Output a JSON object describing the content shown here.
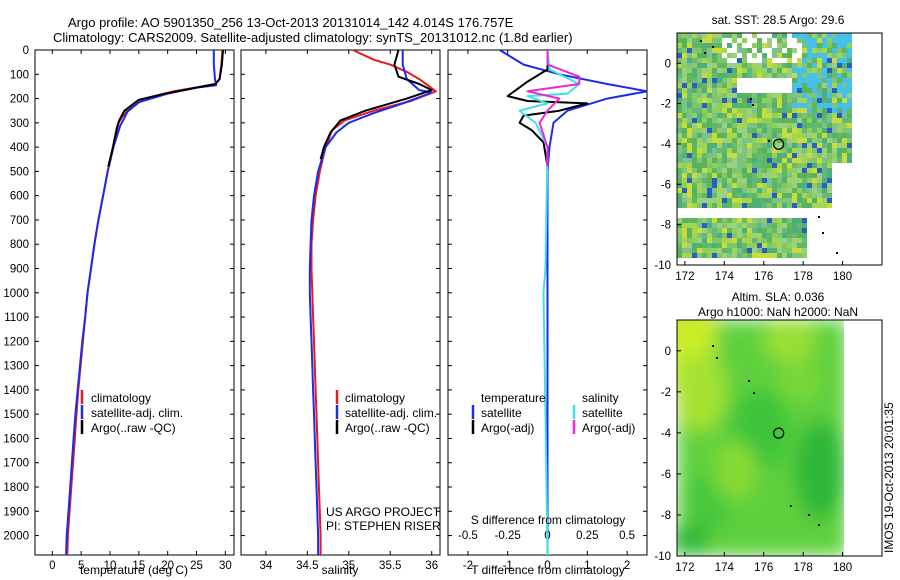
{
  "header": {
    "line1": "Argo profile: AO 5901350_256 13-Oct-2013 20131014_142 4.014S 176.757E",
    "line2": "Climatology: CARS2009. Satellite-adjusted climatology: synTS_20131012.nc (1.8d earlier)"
  },
  "colors": {
    "climatology": "#e8191c",
    "satellite": "#1c2ce8",
    "argo": "#000000",
    "cyan": "#3ee0ea",
    "magenta": "#ea28d8"
  },
  "chart_data": [
    {
      "type": "line",
      "xlabel": "temperature (deg C)",
      "ylabel": "",
      "xlim": [
        -3,
        31.5
      ],
      "ylim": [
        2080,
        0
      ],
      "xticks": [
        0,
        5,
        10,
        15,
        20,
        25,
        30
      ],
      "yticks": [
        0,
        100,
        200,
        300,
        400,
        500,
        600,
        700,
        800,
        900,
        1000,
        1100,
        1200,
        1300,
        1400,
        1500,
        1600,
        1700,
        1800,
        1900,
        2000
      ],
      "legend": [
        "climatology",
        "satellite-adj. clim.",
        "Argo(..raw -QC)"
      ],
      "legend_position": "lower-left",
      "series": [
        {
          "name": "climatology",
          "color": "#e8191c",
          "points": [
            [
              29.5,
              0
            ],
            [
              29.3,
              60
            ],
            [
              29.0,
              120
            ],
            [
              28.2,
              140
            ],
            [
              26,
              150
            ],
            [
              21,
              170
            ],
            [
              16,
              200
            ],
            [
              13,
              250
            ],
            [
              12,
              280
            ],
            [
              11.5,
              300
            ],
            [
              10.6,
              400
            ],
            [
              9.6,
              500
            ],
            [
              8.8,
              600
            ],
            [
              8.0,
              700
            ],
            [
              7.3,
              800
            ],
            [
              6.7,
              900
            ],
            [
              6.1,
              1000
            ],
            [
              5.7,
              1100
            ],
            [
              5.3,
              1200
            ],
            [
              4.9,
              1300
            ],
            [
              4.5,
              1400
            ],
            [
              4.2,
              1500
            ],
            [
              3.9,
              1600
            ],
            [
              3.6,
              1700
            ],
            [
              3.3,
              1800
            ],
            [
              3.0,
              1900
            ],
            [
              2.7,
              2000
            ],
            [
              2.6,
              2080
            ]
          ]
        },
        {
          "name": "satellite-adj. clim.",
          "color": "#1c2ce8",
          "points": [
            [
              28.0,
              0
            ],
            [
              28.0,
              60
            ],
            [
              28.2,
              120
            ],
            [
              28.4,
              145
            ],
            [
              25,
              155
            ],
            [
              20,
              180
            ],
            [
              15,
              215
            ],
            [
              13,
              255
            ],
            [
              12.5,
              280
            ],
            [
              11.8,
              310
            ],
            [
              10.6,
              400
            ],
            [
              9.6,
              500
            ],
            [
              8.8,
              600
            ],
            [
              8.0,
              700
            ],
            [
              7.3,
              800
            ],
            [
              6.7,
              900
            ],
            [
              6.1,
              1000
            ],
            [
              5.7,
              1100
            ],
            [
              5.2,
              1200
            ],
            [
              4.8,
              1300
            ],
            [
              4.4,
              1400
            ],
            [
              4.0,
              1500
            ],
            [
              3.7,
              1600
            ],
            [
              3.4,
              1700
            ],
            [
              3.1,
              1800
            ],
            [
              2.8,
              1900
            ],
            [
              2.5,
              2000
            ],
            [
              2.4,
              2080
            ]
          ]
        },
        {
          "name": "Argo(..raw -QC)",
          "color": "#000000",
          "points": [
            [
              29.6,
              0
            ],
            [
              29.4,
              60
            ],
            [
              29.0,
              120
            ],
            [
              28.3,
              140
            ],
            [
              25,
              155
            ],
            [
              19.5,
              180
            ],
            [
              15,
              205
            ],
            [
              12.5,
              250
            ],
            [
              11.6,
              290
            ],
            [
              11.2,
              320
            ],
            [
              10.5,
              400
            ],
            [
              9.7,
              480
            ]
          ]
        }
      ]
    },
    {
      "type": "line",
      "xlabel": "salinity",
      "ylabel": "",
      "xlim": [
        33.7,
        36.1
      ],
      "ylim": [
        2080,
        0
      ],
      "xticks": [
        34,
        34.5,
        35,
        35.5,
        36
      ],
      "legend": [
        "climatology",
        "satellite-adj. clim.",
        "Argo(..raw -QC)"
      ],
      "legend_position": "lower-right",
      "annotations": [
        "US ARGO PROJECT",
        "PI: STEPHEN RISER"
      ],
      "series": [
        {
          "name": "climatology",
          "color": "#e8191c",
          "points": [
            [
              35.05,
              0
            ],
            [
              35.3,
              40
            ],
            [
              35.5,
              60
            ],
            [
              35.7,
              90
            ],
            [
              35.85,
              120
            ],
            [
              36.05,
              170
            ],
            [
              35.75,
              210
            ],
            [
              35.3,
              250
            ],
            [
              34.95,
              290
            ],
            [
              34.8,
              330
            ],
            [
              34.72,
              400
            ],
            [
              34.65,
              500
            ],
            [
              34.6,
              600
            ],
            [
              34.57,
              700
            ],
            [
              34.55,
              800
            ],
            [
              34.55,
              900
            ],
            [
              34.56,
              1000
            ],
            [
              34.57,
              1100
            ],
            [
              34.58,
              1200
            ],
            [
              34.59,
              1300
            ],
            [
              34.6,
              1400
            ],
            [
              34.61,
              1500
            ],
            [
              34.62,
              1600
            ],
            [
              34.63,
              1700
            ],
            [
              34.64,
              1800
            ],
            [
              34.65,
              1900
            ],
            [
              34.66,
              2000
            ],
            [
              34.66,
              2080
            ]
          ]
        },
        {
          "name": "satellite-adj. clim.",
          "color": "#1c2ce8",
          "points": [
            [
              35.65,
              0
            ],
            [
              35.65,
              60
            ],
            [
              35.7,
              120
            ],
            [
              35.85,
              165
            ],
            [
              36.0,
              175
            ],
            [
              35.65,
              220
            ],
            [
              35.3,
              260
            ],
            [
              35.0,
              300
            ],
            [
              34.85,
              340
            ],
            [
              34.72,
              400
            ],
            [
              34.63,
              500
            ],
            [
              34.58,
              600
            ],
            [
              34.55,
              700
            ],
            [
              34.54,
              800
            ],
            [
              34.53,
              900
            ],
            [
              34.53,
              1000
            ],
            [
              34.54,
              1100
            ],
            [
              34.55,
              1200
            ],
            [
              34.56,
              1300
            ],
            [
              34.57,
              1400
            ],
            [
              34.58,
              1500
            ],
            [
              34.59,
              1600
            ],
            [
              34.6,
              1700
            ],
            [
              34.61,
              1800
            ],
            [
              34.62,
              1900
            ],
            [
              34.63,
              2000
            ],
            [
              34.63,
              2080
            ]
          ]
        },
        {
          "name": "Argo(..raw -QC)",
          "color": "#000000",
          "points": [
            [
              35.6,
              0
            ],
            [
              35.55,
              60
            ],
            [
              35.6,
              110
            ],
            [
              35.85,
              140
            ],
            [
              36.0,
              165
            ],
            [
              35.7,
              200
            ],
            [
              35.2,
              250
            ],
            [
              34.9,
              290
            ],
            [
              34.78,
              340
            ],
            [
              34.7,
              400
            ],
            [
              34.66,
              450
            ]
          ]
        }
      ]
    },
    {
      "type": "line",
      "xlabel": "T difference from climatology",
      "xlabel2": "S difference from climatology",
      "xlim": [
        -2.5,
        2.5
      ],
      "x2lim": [
        -0.625,
        0.625
      ],
      "ylim": [
        2080,
        0
      ],
      "xticks": [
        -2,
        -1,
        0,
        1,
        2
      ],
      "x2ticks": [
        -0.5,
        -0.25,
        0,
        0.25,
        0.5
      ],
      "legend_title_left": "temperature",
      "legend_title_right": "salinity",
      "legend": [
        "satellite",
        "Argo(-adj)",
        "satellite",
        "Argo(-adj)"
      ],
      "series": [
        {
          "name": "temperature satellite",
          "color": "#1c2ce8",
          "points": [
            [
              -1.2,
              0
            ],
            [
              -0.6,
              60
            ],
            [
              0.3,
              100
            ],
            [
              1.5,
              140
            ],
            [
              2.5,
              170
            ],
            [
              1.5,
              200
            ],
            [
              0.5,
              250
            ],
            [
              0.15,
              300
            ],
            [
              0.05,
              400
            ],
            [
              0.0,
              500
            ],
            [
              0.0,
              1000
            ],
            [
              0.0,
              2080
            ]
          ]
        },
        {
          "name": "temperature Argo(-adj)",
          "color": "#000000",
          "points": [
            [
              0.0,
              0
            ],
            [
              0.0,
              80
            ],
            [
              -0.5,
              130
            ],
            [
              -1.0,
              190
            ],
            [
              -0.5,
              210
            ],
            [
              1.0,
              220
            ],
            [
              0.3,
              250
            ],
            [
              -0.6,
              270
            ],
            [
              -0.7,
              300
            ],
            [
              -0.4,
              330
            ],
            [
              -0.1,
              380
            ],
            [
              0.0,
              480
            ]
          ]
        },
        {
          "name": "salinity satellite",
          "color": "#3ee0ea",
          "points": [
            [
              0.0,
              0
            ],
            [
              0.05,
              80
            ],
            [
              0.8,
              140
            ],
            [
              0.5,
              180
            ],
            [
              -0.5,
              190
            ],
            [
              0.0,
              220
            ],
            [
              -0.7,
              250
            ],
            [
              -0.3,
              300
            ],
            [
              0.0,
              400
            ],
            [
              -0.05,
              900
            ],
            [
              -0.1,
              1000
            ],
            [
              -0.05,
              1500
            ],
            [
              0.0,
              2080
            ]
          ]
        },
        {
          "name": "salinity Argo(-adj)",
          "color": "#ea28d8",
          "points": [
            [
              0.0,
              0
            ],
            [
              0.0,
              60
            ],
            [
              0.8,
              110
            ],
            [
              0.8,
              140
            ],
            [
              -0.5,
              170
            ],
            [
              0.3,
              200
            ],
            [
              0.0,
              250
            ],
            [
              -0.2,
              300
            ],
            [
              0.0,
              400
            ],
            [
              0.0,
              480
            ]
          ]
        }
      ]
    },
    {
      "type": "heatmap",
      "title": "sat. SST: 28.5 Argo: 29.6",
      "xlim": [
        171.6,
        182
      ],
      "ylim": [
        -10,
        1.5
      ],
      "xticks": [
        172,
        174,
        176,
        178,
        180
      ],
      "yticks": [
        0,
        -2,
        -4,
        -6,
        -8,
        -10
      ],
      "marker": [
        176.757,
        -4.014
      ]
    },
    {
      "type": "heatmap",
      "title": "Altim. SLA: 0.036",
      "subtitle": "Argo h1000: NaN h2000: NaN",
      "xlim": [
        171.6,
        182
      ],
      "ylim": [
        -10,
        1.5
      ],
      "xticks": [
        172,
        174,
        176,
        178,
        180
      ],
      "yticks": [
        0,
        -2,
        -4,
        -6,
        -8,
        -10
      ],
      "marker": [
        176.757,
        -4.014
      ]
    }
  ],
  "footer": {
    "stamp": "IMOS 19-Oct-2013 20:01:35"
  }
}
